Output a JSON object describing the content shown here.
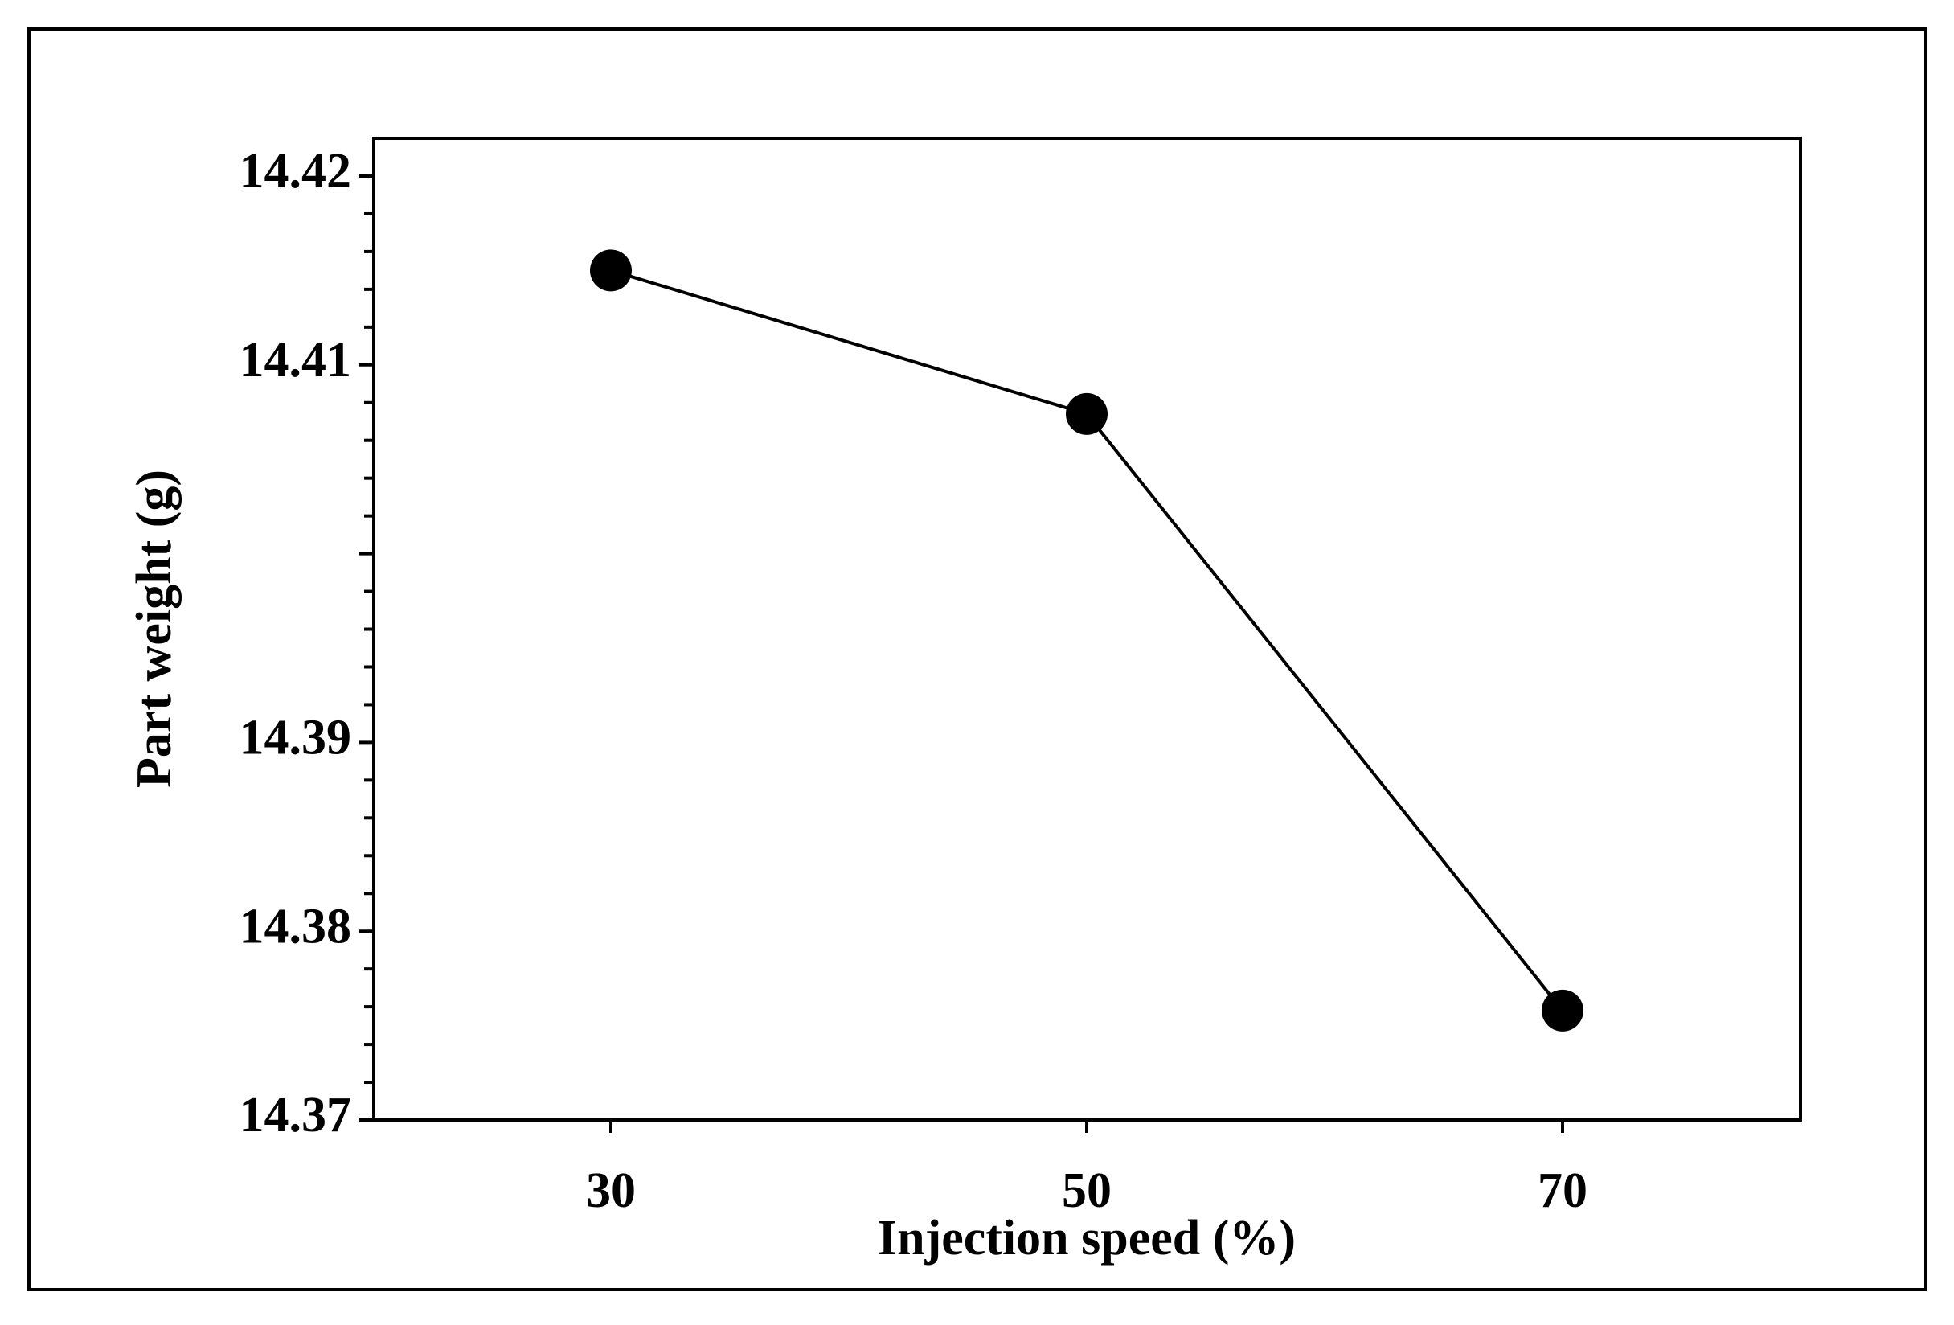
{
  "chart_data": {
    "type": "line",
    "title": "",
    "xlabel": "Injection speed (%)",
    "ylabel": "Part weight (g)",
    "categories": [
      "30",
      "50",
      "70"
    ],
    "series": [
      {
        "values": [
          14.415,
          14.4074,
          14.3758
        ]
      }
    ],
    "ylim": [
      14.37,
      14.42
    ],
    "y_ticks": [
      "14.37",
      "14.38",
      "14.39",
      "14.41",
      "14.42"
    ],
    "y_tick_values": [
      14.37,
      14.38,
      14.39,
      14.41,
      14.42
    ],
    "grid": false,
    "legend": "none",
    "marker": "filled-circle",
    "line_color": "#000000",
    "marker_color": "#000000"
  }
}
